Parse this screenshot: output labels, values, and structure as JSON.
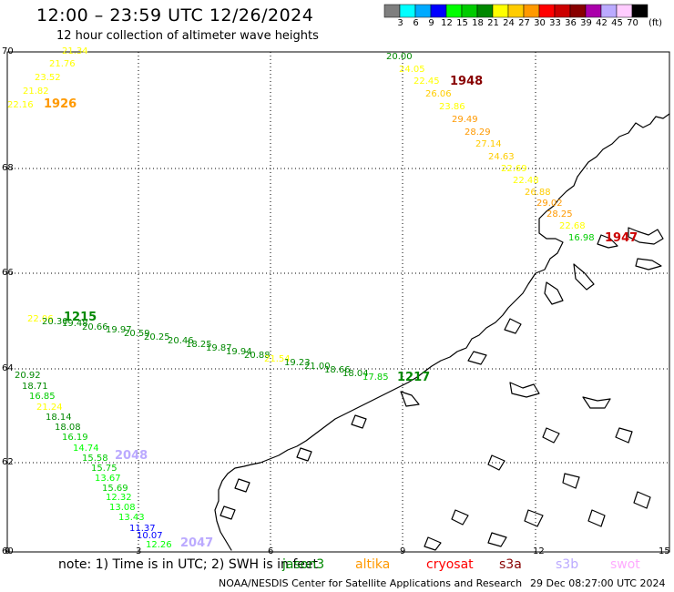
{
  "header": {
    "title": "12:00 – 23:59 UTC 12/26/2024",
    "subtitle": "12 hour collection of altimeter wave heights"
  },
  "colorbar": {
    "unit": "(ft)",
    "bins": [
      {
        "label": "3",
        "color": "#7f7f7f"
      },
      {
        "label": "6",
        "color": "#00ffff"
      },
      {
        "label": "9",
        "color": "#00aaff"
      },
      {
        "label": "12",
        "color": "#0000ff"
      },
      {
        "label": "15",
        "color": "#00ff00"
      },
      {
        "label": "18",
        "color": "#00cc00"
      },
      {
        "label": "21",
        "color": "#008800"
      },
      {
        "label": "24",
        "color": "#ffff00"
      },
      {
        "label": "27",
        "color": "#ffcc00"
      },
      {
        "label": "30",
        "color": "#ff9900"
      },
      {
        "label": "33",
        "color": "#ff0000"
      },
      {
        "label": "36",
        "color": "#cc0000"
      },
      {
        "label": "39",
        "color": "#880000"
      },
      {
        "label": "42",
        "color": "#aa00aa"
      },
      {
        "label": "45",
        "color": "#bbaaff"
      },
      {
        "label": "70",
        "color": "#ffccff"
      },
      {
        "label": "",
        "color": "#000000"
      }
    ]
  },
  "axes": {
    "lat_labels": [
      "70",
      "68",
      "66",
      "64",
      "62",
      "60"
    ],
    "lon_labels": [
      "0",
      "3",
      "6",
      "9",
      "12",
      "15"
    ]
  },
  "passes": [
    {
      "time": "1926",
      "color": "#ff9900",
      "points": [
        {
          "v": "21.34",
          "c": "#ffff00"
        },
        {
          "v": "21.76",
          "c": "#ffff00"
        },
        {
          "v": "23.52",
          "c": "#ffff00"
        },
        {
          "v": "21.82",
          "c": "#ffff00"
        },
        {
          "v": "22.16",
          "c": "#ffff00"
        }
      ]
    },
    {
      "time": "1948",
      "color": "#880000",
      "points": [
        {
          "v": "20.00",
          "c": "#008800"
        },
        {
          "v": "24.05",
          "c": "#ffff00"
        },
        {
          "v": "22.45",
          "c": "#ffff00"
        },
        {
          "v": "26.06",
          "c": "#ffcc00"
        },
        {
          "v": "23.86",
          "c": "#ffff00"
        },
        {
          "v": "29.49",
          "c": "#ff9900"
        },
        {
          "v": "28.29",
          "c": "#ff9900"
        },
        {
          "v": "27.14",
          "c": "#ffcc00"
        },
        {
          "v": "24.63",
          "c": "#ffcc00"
        },
        {
          "v": "22.69",
          "c": "#ffff00"
        },
        {
          "v": "22.48",
          "c": "#ffff00"
        },
        {
          "v": "26.88",
          "c": "#ffcc00"
        },
        {
          "v": "29.02",
          "c": "#ff9900"
        },
        {
          "v": "28.25",
          "c": "#ff9900"
        },
        {
          "v": "22.68",
          "c": "#ffff00"
        },
        {
          "v": "16.98",
          "c": "#00cc00"
        }
      ]
    },
    {
      "time": "1947",
      "color": "#cc0000",
      "points": []
    },
    {
      "time": "1215",
      "color": "#008800",
      "points": [
        {
          "v": "22.06",
          "c": "#ffff00"
        },
        {
          "v": "20.30",
          "c": "#008800"
        },
        {
          "v": "19.48",
          "c": "#008800"
        },
        {
          "v": "20.66",
          "c": "#008800"
        },
        {
          "v": "19.97",
          "c": "#008800"
        },
        {
          "v": "20.59",
          "c": "#008800"
        },
        {
          "v": "20.25",
          "c": "#008800"
        },
        {
          "v": "20.46",
          "c": "#008800"
        },
        {
          "v": "18.25",
          "c": "#008800"
        },
        {
          "v": "19.87",
          "c": "#008800"
        },
        {
          "v": "19.94",
          "c": "#008800"
        },
        {
          "v": "20.88",
          "c": "#008800"
        },
        {
          "v": "21.54",
          "c": "#ffff00"
        },
        {
          "v": "19.23",
          "c": "#008800"
        },
        {
          "v": "21.00",
          "c": "#008800"
        },
        {
          "v": "18.66",
          "c": "#008800"
        },
        {
          "v": "18.04",
          "c": "#008800"
        },
        {
          "v": "17.85",
          "c": "#00cc00"
        }
      ]
    },
    {
      "time": "1217",
      "color": "#008800",
      "points": []
    },
    {
      "time": "2048",
      "color": "#bbaaff",
      "points": [
        {
          "v": "20.92",
          "c": "#008800"
        },
        {
          "v": "18.71",
          "c": "#008800"
        },
        {
          "v": "16.85",
          "c": "#00cc00"
        },
        {
          "v": "21.24",
          "c": "#ffff00"
        },
        {
          "v": "18.14",
          "c": "#008800"
        },
        {
          "v": "18.08",
          "c": "#008800"
        },
        {
          "v": "16.19",
          "c": "#00cc00"
        },
        {
          "v": "14.74",
          "c": "#00ff00"
        },
        {
          "v": "15.58",
          "c": "#00cc00"
        },
        {
          "v": "15.75",
          "c": "#00cc00"
        },
        {
          "v": "13.67",
          "c": "#00ff00"
        },
        {
          "v": "15.69",
          "c": "#00cc00"
        },
        {
          "v": "12.32",
          "c": "#00ff00"
        },
        {
          "v": "13.08",
          "c": "#00ff00"
        },
        {
          "v": "13.43",
          "c": "#00ff00"
        },
        {
          "v": "11.37",
          "c": "#0000ff"
        },
        {
          "v": "10.07",
          "c": "#0000ff"
        },
        {
          "v": "12.26",
          "c": "#00ff00"
        }
      ]
    },
    {
      "time": "2047",
      "color": "#bbaaff",
      "points": []
    }
  ],
  "footer": {
    "note": "note: 1) Time is in UTC; 2) SWH is in feet",
    "satellites": [
      {
        "name": "jason3",
        "color": "#008800"
      },
      {
        "name": "altika",
        "color": "#ff9900"
      },
      {
        "name": "cryosat",
        "color": "#ff0000"
      },
      {
        "name": "s3a",
        "color": "#880000"
      },
      {
        "name": "s3b",
        "color": "#bbaaff"
      },
      {
        "name": "swot",
        "color": "#ffaaff"
      }
    ],
    "credit": "NOAA/NESDIS Center for Satellite Applications and Research",
    "timestamp": "29 Dec 08:27:00 UTC 2024"
  }
}
